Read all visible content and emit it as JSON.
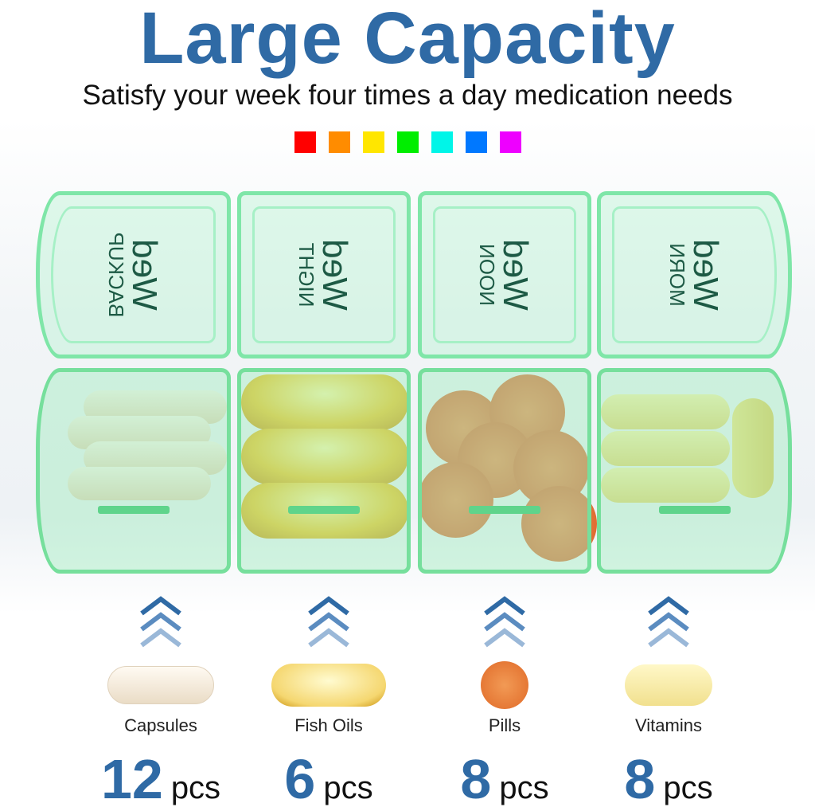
{
  "title": "Large Capacity",
  "subtitle": "Satisfy your week four times a day medication needs",
  "swatches": [
    "#ff0000",
    "#ff8c00",
    "#ffe600",
    "#00ee00",
    "#00f5e8",
    "#0078ff",
    "#ee00ff"
  ],
  "accent": "#2f6aa5",
  "compartments": [
    {
      "day": "Wed",
      "time": "BACKUP"
    },
    {
      "day": "Wed",
      "time": "NIGHT"
    },
    {
      "day": "Wed",
      "time": "NOON"
    },
    {
      "day": "Wed",
      "time": "MORN"
    }
  ],
  "items": [
    {
      "name": "Capsules",
      "count": "12",
      "unit": "pcs",
      "icon": "capsule-icon"
    },
    {
      "name": "Fish Oils",
      "count": "6",
      "unit": "pcs",
      "icon": "fish-oil-icon"
    },
    {
      "name": "Pills",
      "count": "8",
      "unit": "pcs",
      "icon": "pill-icon"
    },
    {
      "name": "Vitamins",
      "count": "8",
      "unit": "pcs",
      "icon": "vitamin-icon"
    }
  ]
}
